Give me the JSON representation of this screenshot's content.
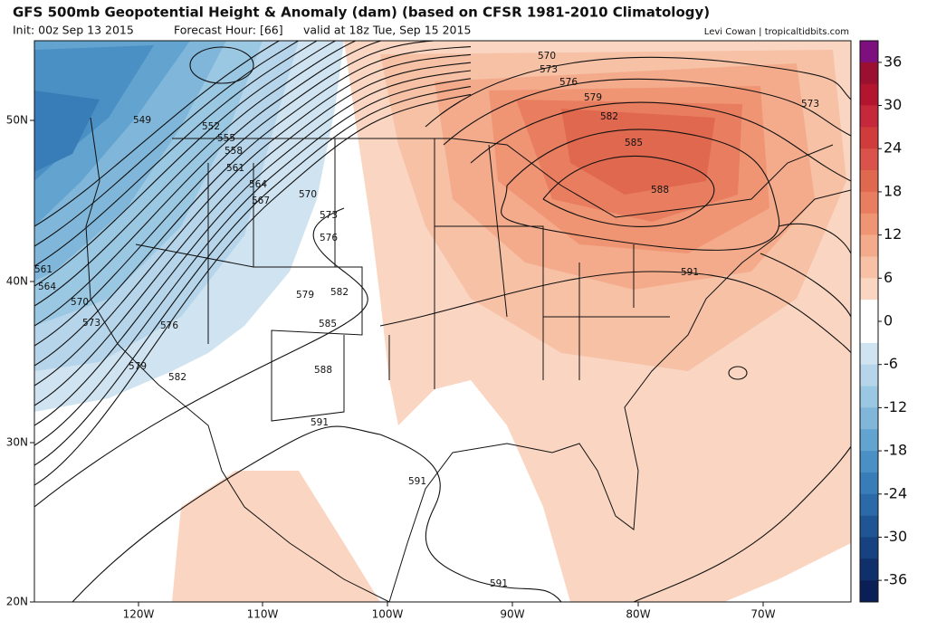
{
  "header": {
    "title": "GFS 500mb Geopotential Height & Anomaly (dam) (based on CFSR 1981-2010 Climatology)",
    "init": "Init: 00z Sep 13 2015",
    "forecast_hour": "Forecast Hour: [66]",
    "valid": "valid at 18z Tue, Sep 15 2015",
    "credit": "Levi Cowan | tropicaltidbits.com"
  },
  "map": {
    "lat_labels": [
      "50N",
      "40N",
      "30N",
      "20N"
    ],
    "lon_labels": [
      "120W",
      "110W",
      "100W",
      "90W",
      "80W",
      "70W"
    ],
    "contour_labels": [
      "549",
      "552",
      "555",
      "558",
      "561",
      "564",
      "567",
      "570",
      "573",
      "576",
      "579",
      "582",
      "585",
      "588",
      "591",
      "591",
      "591",
      "591",
      "588",
      "585",
      "582",
      "579",
      "576",
      "573",
      "570",
      "573",
      "561",
      "564",
      "570",
      "573",
      "576",
      "579",
      "582"
    ]
  },
  "colorbar": {
    "range": [
      -39,
      39
    ],
    "ticks": [
      36,
      30,
      24,
      18,
      12,
      6,
      0,
      -6,
      -12,
      -18,
      -24,
      -30,
      -36
    ],
    "colors": [
      "#7d0f7f",
      "#9b1030",
      "#b3152f",
      "#c4283a",
      "#d03c3c",
      "#d9534a",
      "#e0684f",
      "#e87e5f",
      "#ef9574",
      "#f4ab8c",
      "#f7c1a6",
      "#fad6c2",
      "#ffffff",
      "#ffffff",
      "#cfe3f0",
      "#b6d5ea",
      "#9ac7e2",
      "#7fb6d9",
      "#62a3cf",
      "#4b90c4",
      "#397db8",
      "#2c69a8",
      "#205594",
      "#174281",
      "#10306b",
      "#0a1f55"
    ]
  }
}
